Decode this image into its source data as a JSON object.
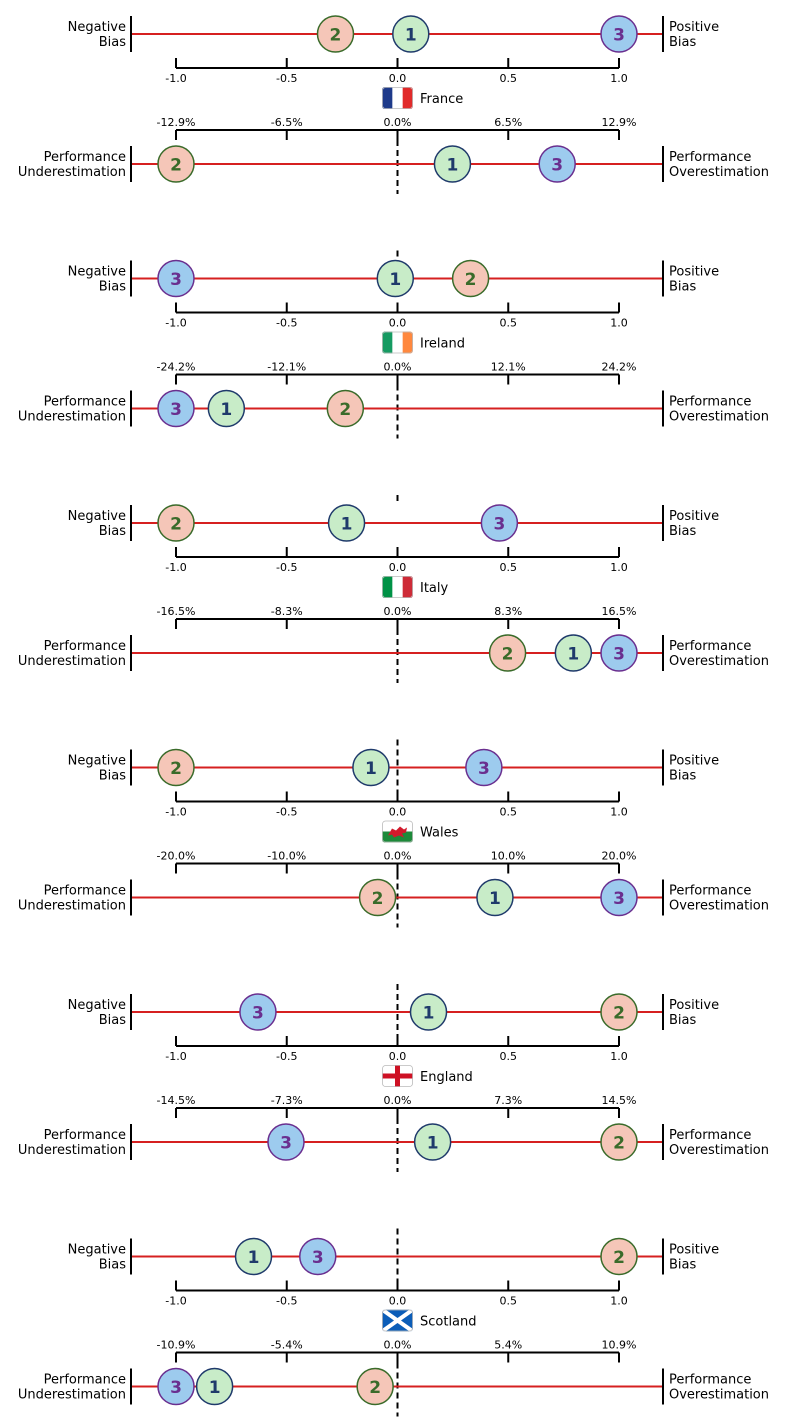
{
  "chart_data": [
    {
      "type": "scatter",
      "country": "France",
      "bias_axis": {
        "left_label": [
          "Negative",
          "Bias"
        ],
        "right_label": [
          "Positive",
          "Bias"
        ],
        "ticks": [
          "-1.0",
          "-0.5",
          "0.0",
          "0.5",
          "1.0"
        ],
        "xlim": [
          -1.0,
          1.0
        ],
        "points": [
          {
            "label": "1",
            "x": 0.06,
            "color": "#c8ecc8",
            "edge": "#1f3a6b",
            "text": "#1f3a6b"
          },
          {
            "label": "2",
            "x": -0.28,
            "color": "#f5c6b8",
            "edge": "#3a6b2a",
            "text": "#3a6b2a"
          },
          {
            "label": "3",
            "x": 1.0,
            "color": "#9dcbee",
            "edge": "#6a2f8f",
            "text": "#6a2f8f"
          }
        ]
      },
      "performance_axis": {
        "left_label": [
          "Performance",
          "Underestimation"
        ],
        "right_label": [
          "Performance",
          "Overestimation"
        ],
        "ticks": [
          "-12.9%",
          "-6.5%",
          "0.0%",
          "6.5%",
          "12.9%"
        ],
        "xlim": [
          -12.9,
          12.9
        ],
        "points": [
          {
            "label": "1",
            "x": 3.2,
            "color": "#c8ecc8",
            "edge": "#1f3a6b",
            "text": "#1f3a6b"
          },
          {
            "label": "2",
            "x": -12.9,
            "color": "#f5c6b8",
            "edge": "#3a6b2a",
            "text": "#3a6b2a"
          },
          {
            "label": "3",
            "x": 9.3,
            "color": "#9dcbee",
            "edge": "#6a2f8f",
            "text": "#6a2f8f"
          }
        ]
      }
    },
    {
      "type": "scatter",
      "country": "Ireland",
      "bias_axis": {
        "left_label": [
          "Negative",
          "Bias"
        ],
        "right_label": [
          "Positive",
          "Bias"
        ],
        "ticks": [
          "-1.0",
          "-0.5",
          "0.0",
          "0.5",
          "1.0"
        ],
        "xlim": [
          -1.0,
          1.0
        ],
        "points": [
          {
            "label": "1",
            "x": -0.01,
            "color": "#c8ecc8",
            "edge": "#1f3a6b",
            "text": "#1f3a6b"
          },
          {
            "label": "2",
            "x": 0.33,
            "color": "#f5c6b8",
            "edge": "#3a6b2a",
            "text": "#3a6b2a"
          },
          {
            "label": "3",
            "x": -1.0,
            "color": "#9dcbee",
            "edge": "#6a2f8f",
            "text": "#6a2f8f"
          }
        ]
      },
      "performance_axis": {
        "left_label": [
          "Performance",
          "Underestimation"
        ],
        "right_label": [
          "Performance",
          "Overestimation"
        ],
        "ticks": [
          "-24.2%",
          "-12.1%",
          "0.0%",
          "12.1%",
          "24.2%"
        ],
        "xlim": [
          -24.2,
          24.2
        ],
        "points": [
          {
            "label": "1",
            "x": -18.7,
            "color": "#c8ecc8",
            "edge": "#1f3a6b",
            "text": "#1f3a6b"
          },
          {
            "label": "2",
            "x": -5.7,
            "color": "#f5c6b8",
            "edge": "#3a6b2a",
            "text": "#3a6b2a"
          },
          {
            "label": "3",
            "x": -24.2,
            "color": "#9dcbee",
            "edge": "#6a2f8f",
            "text": "#6a2f8f"
          }
        ]
      }
    },
    {
      "type": "scatter",
      "country": "Italy",
      "bias_axis": {
        "left_label": [
          "Negative",
          "Bias"
        ],
        "right_label": [
          "Positive",
          "Bias"
        ],
        "ticks": [
          "-1.0",
          "-0.5",
          "0.0",
          "0.5",
          "1.0"
        ],
        "xlim": [
          -1.0,
          1.0
        ],
        "points": [
          {
            "label": "1",
            "x": -0.23,
            "color": "#c8ecc8",
            "edge": "#1f3a6b",
            "text": "#1f3a6b"
          },
          {
            "label": "2",
            "x": -1.0,
            "color": "#f5c6b8",
            "edge": "#3a6b2a",
            "text": "#3a6b2a"
          },
          {
            "label": "3",
            "x": 0.46,
            "color": "#9dcbee",
            "edge": "#6a2f8f",
            "text": "#6a2f8f"
          }
        ]
      },
      "performance_axis": {
        "left_label": [
          "Performance",
          "Underestimation"
        ],
        "right_label": [
          "Performance",
          "Overestimation"
        ],
        "ticks": [
          "-16.5%",
          "-8.3%",
          "0.0%",
          "8.3%",
          "16.5%"
        ],
        "xlim": [
          -16.5,
          16.5
        ],
        "points": [
          {
            "label": "1",
            "x": 13.1,
            "color": "#c8ecc8",
            "edge": "#1f3a6b",
            "text": "#1f3a6b"
          },
          {
            "label": "2",
            "x": 8.2,
            "color": "#f5c6b8",
            "edge": "#3a6b2a",
            "text": "#3a6b2a"
          },
          {
            "label": "3",
            "x": 16.5,
            "color": "#9dcbee",
            "edge": "#6a2f8f",
            "text": "#6a2f8f"
          }
        ]
      }
    },
    {
      "type": "scatter",
      "country": "Wales",
      "bias_axis": {
        "left_label": [
          "Negative",
          "Bias"
        ],
        "right_label": [
          "Positive",
          "Bias"
        ],
        "ticks": [
          "-1.0",
          "-0.5",
          "0.0",
          "0.5",
          "1.0"
        ],
        "xlim": [
          -1.0,
          1.0
        ],
        "points": [
          {
            "label": "1",
            "x": -0.12,
            "color": "#c8ecc8",
            "edge": "#1f3a6b",
            "text": "#1f3a6b"
          },
          {
            "label": "2",
            "x": -1.0,
            "color": "#f5c6b8",
            "edge": "#3a6b2a",
            "text": "#3a6b2a"
          },
          {
            "label": "3",
            "x": 0.39,
            "color": "#9dcbee",
            "edge": "#6a2f8f",
            "text": "#6a2f8f"
          }
        ]
      },
      "performance_axis": {
        "left_label": [
          "Performance",
          "Underestimation"
        ],
        "right_label": [
          "Performance",
          "Overestimation"
        ],
        "ticks": [
          "-20.0%",
          "-10.0%",
          "0.0%",
          "10.0%",
          "20.0%"
        ],
        "xlim": [
          -20.0,
          20.0
        ],
        "points": [
          {
            "label": "1",
            "x": 8.8,
            "color": "#c8ecc8",
            "edge": "#1f3a6b",
            "text": "#1f3a6b"
          },
          {
            "label": "2",
            "x": -1.8,
            "color": "#f5c6b8",
            "edge": "#3a6b2a",
            "text": "#3a6b2a"
          },
          {
            "label": "3",
            "x": 20.0,
            "color": "#9dcbee",
            "edge": "#6a2f8f",
            "text": "#6a2f8f"
          }
        ]
      }
    },
    {
      "type": "scatter",
      "country": "England",
      "bias_axis": {
        "left_label": [
          "Negative",
          "Bias"
        ],
        "right_label": [
          "Positive",
          "Bias"
        ],
        "ticks": [
          "-1.0",
          "-0.5",
          "0.0",
          "0.5",
          "1.0"
        ],
        "xlim": [
          -1.0,
          1.0
        ],
        "points": [
          {
            "label": "1",
            "x": 0.14,
            "color": "#c8ecc8",
            "edge": "#1f3a6b",
            "text": "#1f3a6b"
          },
          {
            "label": "2",
            "x": 1.0,
            "color": "#f5c6b8",
            "edge": "#3a6b2a",
            "text": "#3a6b2a"
          },
          {
            "label": "3",
            "x": -0.63,
            "color": "#9dcbee",
            "edge": "#6a2f8f",
            "text": "#6a2f8f"
          }
        ]
      },
      "performance_axis": {
        "left_label": [
          "Performance",
          "Underestimation"
        ],
        "right_label": [
          "Performance",
          "Overestimation"
        ],
        "ticks": [
          "-14.5%",
          "-7.3%",
          "0.0%",
          "7.3%",
          "14.5%"
        ],
        "xlim": [
          -14.5,
          14.5
        ],
        "points": [
          {
            "label": "1",
            "x": 2.3,
            "color": "#c8ecc8",
            "edge": "#1f3a6b",
            "text": "#1f3a6b"
          },
          {
            "label": "2",
            "x": 14.5,
            "color": "#f5c6b8",
            "edge": "#3a6b2a",
            "text": "#3a6b2a"
          },
          {
            "label": "3",
            "x": -7.3,
            "color": "#9dcbee",
            "edge": "#6a2f8f",
            "text": "#6a2f8f"
          }
        ]
      }
    },
    {
      "type": "scatter",
      "country": "Scotland",
      "bias_axis": {
        "left_label": [
          "Negative",
          "Bias"
        ],
        "right_label": [
          "Positive",
          "Bias"
        ],
        "ticks": [
          "-1.0",
          "-0.5",
          "0.0",
          "0.5",
          "1.0"
        ],
        "xlim": [
          -1.0,
          1.0
        ],
        "points": [
          {
            "label": "1",
            "x": -0.65,
            "color": "#c8ecc8",
            "edge": "#1f3a6b",
            "text": "#1f3a6b"
          },
          {
            "label": "2",
            "x": 1.0,
            "color": "#f5c6b8",
            "edge": "#3a6b2a",
            "text": "#3a6b2a"
          },
          {
            "label": "3",
            "x": -0.36,
            "color": "#9dcbee",
            "edge": "#6a2f8f",
            "text": "#6a2f8f"
          }
        ]
      },
      "performance_axis": {
        "left_label": [
          "Performance",
          "Underestimation"
        ],
        "right_label": [
          "Performance",
          "Overestimation"
        ],
        "ticks": [
          "-10.9%",
          "-5.4%",
          "0.0%",
          "5.4%",
          "10.9%"
        ],
        "xlim": [
          -10.9,
          10.9
        ],
        "points": [
          {
            "label": "1",
            "x": -9.0,
            "color": "#c8ecc8",
            "edge": "#1f3a6b",
            "text": "#1f3a6b"
          },
          {
            "label": "2",
            "x": -1.1,
            "color": "#f5c6b8",
            "edge": "#3a6b2a",
            "text": "#3a6b2a"
          },
          {
            "label": "3",
            "x": -10.9,
            "color": "#9dcbee",
            "edge": "#6a2f8f",
            "text": "#6a2f8f"
          }
        ]
      }
    }
  ],
  "flags": {
    "France": "france-flag-icon",
    "Ireland": "ireland-flag-icon",
    "Italy": "italy-flag-icon",
    "Wales": "wales-flag-icon",
    "England": "england-flag-icon",
    "Scotland": "scotland-flag-icon"
  },
  "colors": {
    "axis_line": "#d62020",
    "tick_color": "#000000"
  }
}
